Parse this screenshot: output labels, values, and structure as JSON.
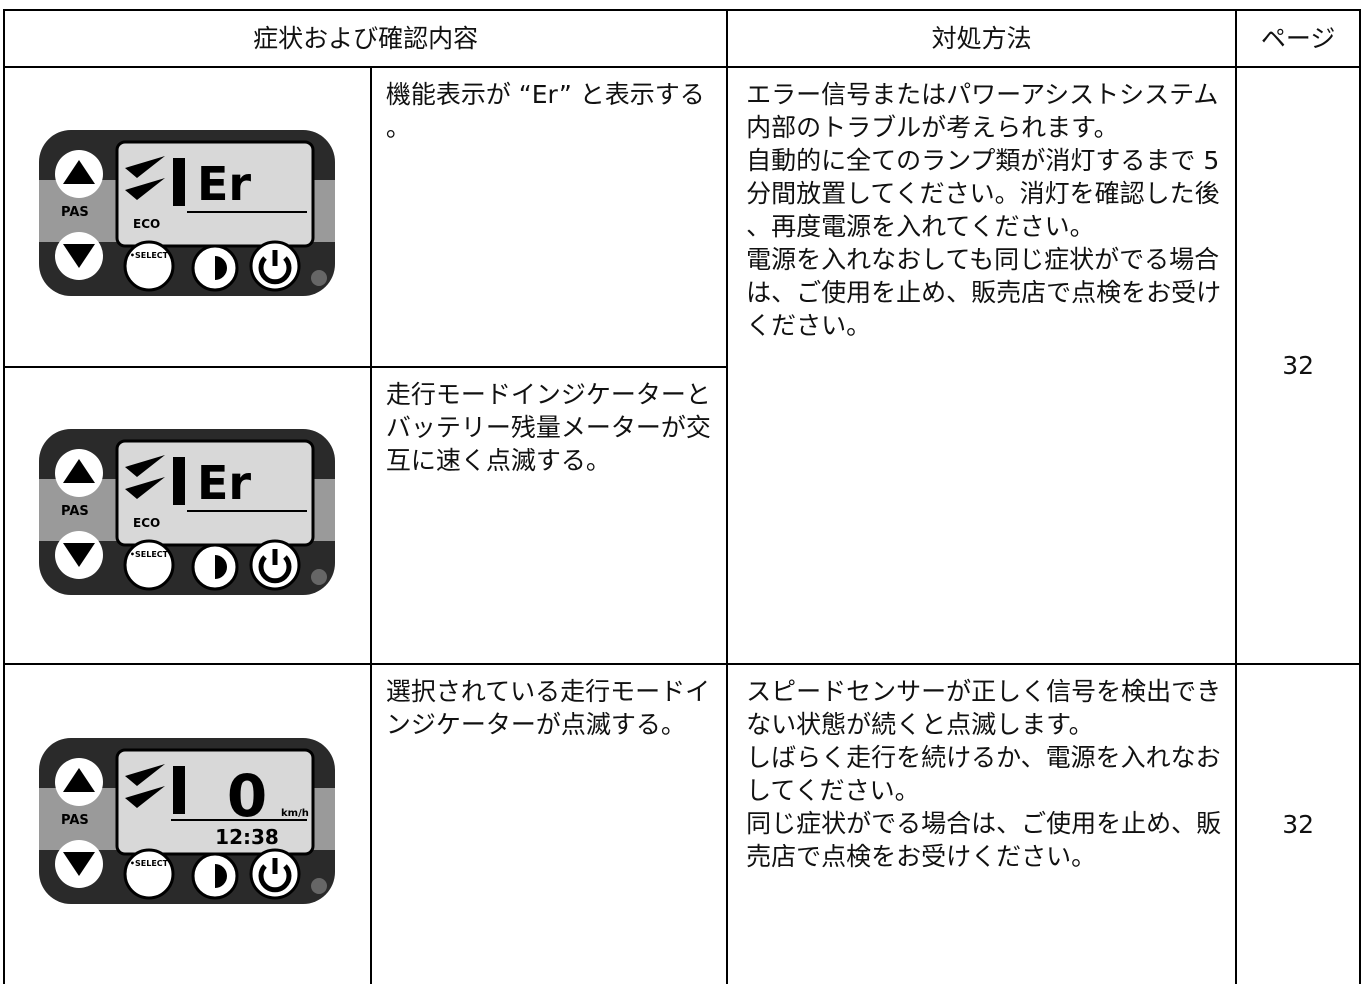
{
  "header": {
    "symptom": "症状および確認内容",
    "remedy": "対処方法",
    "page": "ページ"
  },
  "rows": [
    {
      "display": {
        "readout": "Er",
        "pas": "PAS",
        "eco": "ECO",
        "select": "•SELECT"
      },
      "symptom": "機能表示が “Er” と表示する。",
      "remedy": [
        "エラー信号またはパワーアシストシステム内部のトラブルが考えられます。",
        "自動的に全てのランプ類が消灯するまで 5 分間放置してください。消灯を確認した後、再度電源を入れてください。",
        "電源を入れなおしても同じ症状がでる場合は、ご使用を止め、販売店で点検をお受けください。"
      ],
      "page": 32
    },
    {
      "display": {
        "readout": "Er",
        "pas": "PAS",
        "eco": "ECO",
        "select": "•SELECT"
      },
      "symptom": "走行モードインジケーターとバッテリー残量メーターが交互に速く点滅する。"
    },
    {
      "display": {
        "readout": "0",
        "unit": "km/h",
        "clock": "12:38",
        "pas": "PAS",
        "select": "•SELECT"
      },
      "symptom": "選択されている走行モードインジケーターが点滅する。",
      "remedy": [
        "スピードセンサーが正しく信号を検出できない状態が続くと点滅します。",
        "しばらく走行を続けるか、電源を入れなおしてください。",
        "同じ症状がでる場合は、ご使用を止め、販売店で点検をお受けください。"
      ],
      "page": 32
    }
  ]
}
